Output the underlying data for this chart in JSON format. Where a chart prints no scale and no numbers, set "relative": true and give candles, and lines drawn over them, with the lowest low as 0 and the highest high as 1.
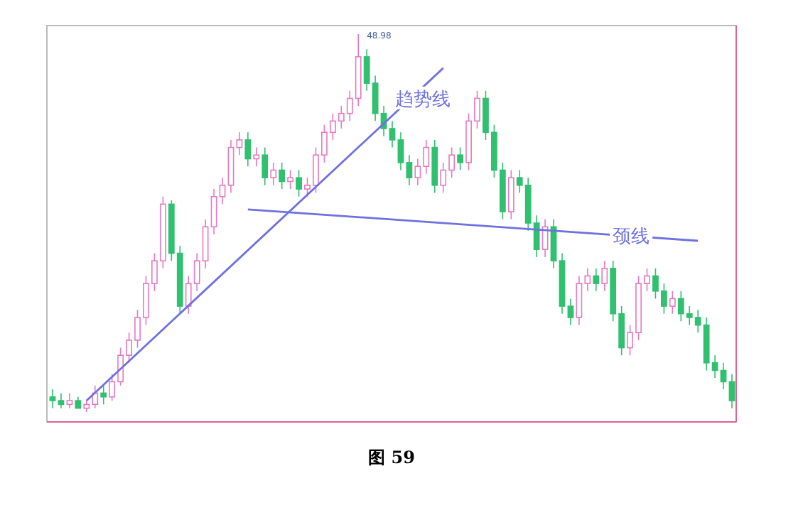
{
  "chart_data": {
    "type": "candlestick",
    "title": "图 59",
    "relative": true,
    "categories": [
      null,
      null,
      null,
      null,
      null,
      null,
      null,
      null,
      null,
      null,
      null,
      null,
      null,
      null,
      null,
      null,
      null,
      null,
      null,
      null,
      null,
      null,
      null,
      null,
      null,
      null,
      null,
      null,
      null,
      null,
      null,
      null,
      null,
      null,
      null,
      null,
      null,
      null,
      null,
      null,
      null,
      null,
      null,
      null,
      null,
      null,
      null,
      null,
      null,
      null,
      null,
      null,
      null,
      null,
      null,
      null,
      null,
      null,
      null,
      null,
      null,
      null,
      null,
      null,
      null,
      null,
      null,
      null,
      null,
      null,
      null,
      null,
      null,
      null,
      null,
      null,
      null,
      null,
      null,
      null,
      null
    ],
    "ohlc": [
      [
        0.04,
        0.06,
        0.01,
        0.03
      ],
      [
        0.03,
        0.05,
        0.01,
        0.02
      ],
      [
        0.02,
        0.05,
        0.01,
        0.03
      ],
      [
        0.03,
        0.04,
        0.01,
        0.01
      ],
      [
        0.01,
        0.03,
        0,
        0.02
      ],
      [
        0.02,
        0.07,
        0.01,
        0.05
      ],
      [
        0.05,
        0.07,
        0.02,
        0.04
      ],
      [
        0.04,
        0.1,
        0.03,
        0.08
      ],
      [
        0.08,
        0.17,
        0.07,
        0.15
      ],
      [
        0.15,
        0.21,
        0.13,
        0.19
      ],
      [
        0.19,
        0.27,
        0.17,
        0.25
      ],
      [
        0.25,
        0.36,
        0.23,
        0.34
      ],
      [
        0.34,
        0.42,
        0.32,
        0.4
      ],
      [
        0.4,
        0.57,
        0.38,
        0.55
      ],
      [
        0.55,
        0.56,
        0.4,
        0.42
      ],
      [
        0.42,
        0.44,
        0.26,
        0.28
      ],
      [
        0.28,
        0.36,
        0.26,
        0.34
      ],
      [
        0.34,
        0.42,
        0.32,
        0.4
      ],
      [
        0.4,
        0.51,
        0.38,
        0.49
      ],
      [
        0.49,
        0.59,
        0.47,
        0.57
      ],
      [
        0.57,
        0.62,
        0.55,
        0.6
      ],
      [
        0.6,
        0.72,
        0.58,
        0.7
      ],
      [
        0.7,
        0.74,
        0.68,
        0.72
      ],
      [
        0.72,
        0.74,
        0.65,
        0.67
      ],
      [
        0.67,
        0.7,
        0.65,
        0.68
      ],
      [
        0.68,
        0.7,
        0.6,
        0.62
      ],
      [
        0.62,
        0.66,
        0.6,
        0.64
      ],
      [
        0.64,
        0.66,
        0.59,
        0.61
      ],
      [
        0.61,
        0.64,
        0.59,
        0.62
      ],
      [
        0.62,
        0.64,
        0.57,
        0.59
      ],
      [
        0.59,
        0.62,
        0.57,
        0.6
      ],
      [
        0.6,
        0.7,
        0.58,
        0.68
      ],
      [
        0.68,
        0.76,
        0.66,
        0.74
      ],
      [
        0.74,
        0.79,
        0.72,
        0.77
      ],
      [
        0.77,
        0.81,
        0.75,
        0.79
      ],
      [
        0.79,
        0.85,
        0.77,
        0.83
      ],
      [
        0.83,
        1,
        0.81,
        0.94
      ],
      [
        0.94,
        0.96,
        0.85,
        0.87
      ],
      [
        0.87,
        0.89,
        0.77,
        0.79
      ],
      [
        0.79,
        0.81,
        0.73,
        0.75
      ],
      [
        0.75,
        0.77,
        0.7,
        0.72
      ],
      [
        0.72,
        0.74,
        0.64,
        0.66
      ],
      [
        0.66,
        0.68,
        0.6,
        0.62
      ],
      [
        0.62,
        0.67,
        0.6,
        0.65
      ],
      [
        0.65,
        0.72,
        0.63,
        0.7
      ],
      [
        0.7,
        0.72,
        0.58,
        0.6
      ],
      [
        0.6,
        0.66,
        0.58,
        0.64
      ],
      [
        0.64,
        0.7,
        0.62,
        0.68
      ],
      [
        0.68,
        0.7,
        0.64,
        0.66
      ],
      [
        0.66,
        0.79,
        0.64,
        0.77
      ],
      [
        0.77,
        0.85,
        0.75,
        0.83
      ],
      [
        0.83,
        0.85,
        0.72,
        0.74
      ],
      [
        0.74,
        0.76,
        0.62,
        0.64
      ],
      [
        0.64,
        0.66,
        0.51,
        0.53
      ],
      [
        0.53,
        0.64,
        0.51,
        0.62
      ],
      [
        0.62,
        0.64,
        0.58,
        0.6
      ],
      [
        0.6,
        0.62,
        0.48,
        0.5
      ],
      [
        0.5,
        0.52,
        0.41,
        0.43
      ],
      [
        0.43,
        0.51,
        0.41,
        0.49
      ],
      [
        0.49,
        0.51,
        0.38,
        0.4
      ],
      [
        0.4,
        0.42,
        0.26,
        0.28
      ],
      [
        0.28,
        0.3,
        0.23,
        0.25
      ],
      [
        0.25,
        0.36,
        0.23,
        0.34
      ],
      [
        0.34,
        0.38,
        0.32,
        0.36
      ],
      [
        0.36,
        0.38,
        0.32,
        0.34
      ],
      [
        0.34,
        0.4,
        0.32,
        0.38
      ],
      [
        0.38,
        0.4,
        0.24,
        0.26
      ],
      [
        0.26,
        0.28,
        0.15,
        0.17
      ],
      [
        0.17,
        0.23,
        0.15,
        0.21
      ],
      [
        0.21,
        0.36,
        0.19,
        0.34
      ],
      [
        0.34,
        0.38,
        0.32,
        0.36
      ],
      [
        0.36,
        0.38,
        0.3,
        0.32
      ],
      [
        0.32,
        0.34,
        0.26,
        0.28
      ],
      [
        0.28,
        0.32,
        0.26,
        0.3
      ],
      [
        0.3,
        0.32,
        0.24,
        0.26
      ],
      [
        0.26,
        0.28,
        0.23,
        0.25
      ],
      [
        0.25,
        0.27,
        0.21,
        0.23
      ],
      [
        0.23,
        0.25,
        0.11,
        0.13
      ],
      [
        0.13,
        0.15,
        0.09,
        0.11
      ],
      [
        0.11,
        0.13,
        0.06,
        0.08
      ],
      [
        0.08,
        0.1,
        0.01,
        0.03
      ]
    ],
    "series": [
      {
        "type": "line",
        "name": "趋势线",
        "color": "#7070e0",
        "values": [
          null,
          null,
          null,
          null,
          0.03,
          null,
          null,
          null,
          null,
          null,
          null,
          null,
          null,
          null,
          null,
          null,
          null,
          null,
          null,
          null,
          null,
          null,
          null,
          null,
          null,
          null,
          null,
          null,
          null,
          null,
          null,
          null,
          null,
          null,
          null,
          null,
          null,
          null,
          null,
          null,
          null,
          null,
          null,
          null,
          null,
          null,
          0.91,
          null,
          null,
          null,
          null,
          null,
          null,
          null,
          null,
          null,
          null,
          null,
          null,
          null,
          null,
          null,
          null,
          null,
          null,
          null,
          null,
          null,
          null,
          null,
          null,
          null,
          null,
          null,
          null,
          null,
          null,
          null,
          null,
          null,
          null
        ]
      },
      {
        "type": "line",
        "name": "颈线",
        "color": "#7070e0",
        "values": [
          null,
          null,
          null,
          null,
          null,
          null,
          null,
          null,
          null,
          null,
          null,
          null,
          null,
          null,
          null,
          null,
          null,
          null,
          null,
          null,
          null,
          null,
          null,
          0.536,
          null,
          null,
          null,
          null,
          null,
          null,
          null,
          null,
          null,
          null,
          null,
          null,
          null,
          null,
          null,
          null,
          null,
          null,
          null,
          null,
          null,
          null,
          null,
          null,
          null,
          null,
          null,
          null,
          null,
          null,
          null,
          null,
          null,
          null,
          null,
          null,
          null,
          null,
          null,
          null,
          null,
          null,
          null,
          null,
          null,
          null,
          null,
          null,
          null,
          null,
          null,
          null,
          0.453,
          null,
          null,
          null,
          null
        ]
      }
    ],
    "annotations": [
      "48.98"
    ]
  }
}
